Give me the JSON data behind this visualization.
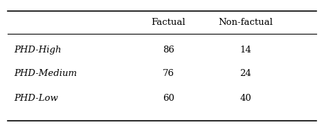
{
  "columns": [
    "",
    "Factual",
    "Non-factual"
  ],
  "rows": [
    [
      "PHD-High",
      "86",
      "14"
    ],
    [
      "PHD-Medium",
      "76",
      "24"
    ],
    [
      "PHD-Low",
      "60",
      "40"
    ]
  ],
  "background_color": "#ffffff",
  "figsize": [
    4.68,
    1.84
  ],
  "dpi": 100
}
